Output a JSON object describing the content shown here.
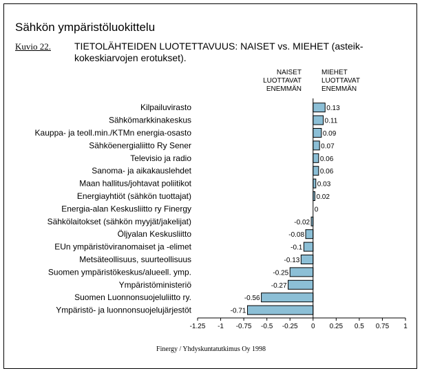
{
  "header": {
    "title": "Sähkön ympäristöluokittelu",
    "figure_label": "Kuvio 22.",
    "subtitle": "TIETOLÄHTEIDEN LUOTETTAVUUS: NAISET vs. MIEHET (asteik-kokeskiarvojen erotukset).",
    "left_heading": "NAISET LUOTTAVAT ENEMMÄN",
    "right_heading": "MIEHET LUOTTAVAT ENEMMÄN"
  },
  "footer": {
    "source": "Finergy / Yhdyskuntatutkimus Oy 1998"
  },
  "colors": {
    "bar_fill": "#8cbfd6",
    "bar_stroke": "#000000"
  },
  "chart_data": {
    "type": "bar",
    "orientation": "horizontal",
    "title": "TIETOLÄHTEIDEN LUOTETTAVUUS: NAISET vs. MIEHET (asteikkokeskiarvojen erotukset).",
    "categories": [
      "Kilpailuvirasto",
      "Sähkömarkkinakeskus",
      "Kauppa- ja teoll.min./KTMn energia-osasto",
      "Sähköenergialiitto Ry Sener",
      "Televisio ja radio",
      "Sanoma- ja aikakauslehdet",
      "Maan hallitus/johtavat poliitikot",
      "Energiayhtiöt (sähkön tuottajat)",
      "Energia-alan Keskusliitto ry Finergy",
      "Sähkölaitokset (sähkön myyjät/jakelijat)",
      "Öljyalan Keskusliitto",
      "EUn ympäristöviranomaiset ja -elimet",
      "Metsäteollisuus, suurteollisuus",
      "Suomen ympäristökeskus/alueell. ymp.",
      "Ympäristöministeriö",
      "Suomen Luonnonsuojeluliitto ry.",
      "Ympäristö- ja luonnonsuojelujärjestöt"
    ],
    "values": [
      0.13,
      0.11,
      0.09,
      0.07,
      0.06,
      0.06,
      0.03,
      0.02,
      0,
      -0.02,
      -0.08,
      -0.1,
      -0.13,
      -0.25,
      -0.27,
      -0.56,
      -0.71
    ],
    "value_labels": [
      "0.13",
      "0.11",
      "0.09",
      "0.07",
      "0.06",
      "0.06",
      "0.03",
      "0.02",
      "0",
      "-0.02",
      "-0.08",
      "-0.1",
      "-0.13",
      "-0.25",
      "-0.27",
      "-0.56",
      "-0.71"
    ],
    "xlim": [
      -1.25,
      1
    ],
    "x_ticks": [
      -1.25,
      -1,
      -0.75,
      -0.5,
      -0.25,
      0,
      0.25,
      0.5,
      0.75,
      1
    ],
    "x_tick_labels": [
      "-1.25",
      "-1",
      "-0.75",
      "-0.5",
      "-0.25",
      "0",
      "0.25",
      "0.5",
      "0.75",
      "1"
    ],
    "xlabel": "",
    "ylabel": "",
    "grid": false,
    "legend": "none"
  }
}
